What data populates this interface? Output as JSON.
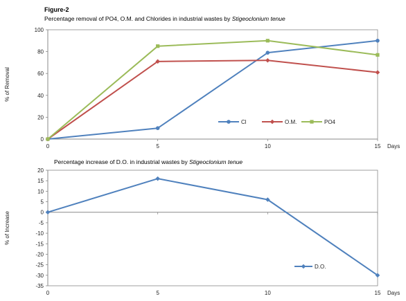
{
  "figure_label": "Figure-2",
  "chart_data": [
    {
      "type": "line",
      "title_plain": "Percentage removal of PO4, O.M. and Chlorides in industrial wastes by ",
      "title_italic": "Stigeoclonium tenue",
      "xlabel": "Days",
      "ylabel": "% of Removal",
      "x": [
        0,
        5,
        10,
        15
      ],
      "xlim": [
        0,
        15
      ],
      "ylim": [
        0,
        100
      ],
      "x_ticks": [
        0,
        5,
        10,
        15
      ],
      "y_ticks": [
        0,
        20,
        40,
        60,
        80,
        100
      ],
      "grid": false,
      "legend_position": "inside-lower-right",
      "series": [
        {
          "name": "Cl",
          "values": [
            0,
            10,
            79,
            90
          ],
          "color": "#4f81bd",
          "marker": "circle"
        },
        {
          "name": "O.M.",
          "values": [
            0,
            71,
            72,
            61
          ],
          "color": "#c0504d",
          "marker": "diamond"
        },
        {
          "name": "PO4",
          "values": [
            0,
            85,
            90,
            77
          ],
          "color": "#9bbb59",
          "marker": "square"
        }
      ]
    },
    {
      "type": "line",
      "title_plain": "Percentage increase of D.O. in industrial wastes by ",
      "title_italic": "Stigeoclonium tenue",
      "xlabel": "Days",
      "ylabel": "% of Increase",
      "x": [
        0,
        5,
        10,
        15
      ],
      "xlim": [
        0,
        15
      ],
      "ylim": [
        -35,
        20
      ],
      "x_ticks": [
        0,
        5,
        10,
        15
      ],
      "y_ticks": [
        20,
        15,
        10,
        5,
        0,
        -5,
        -10,
        -15,
        -20,
        -25,
        -30,
        -35
      ],
      "grid": false,
      "zero_line": true,
      "legend_position": "inside-lower-right",
      "series": [
        {
          "name": "D.O.",
          "values": [
            0,
            16,
            6,
            -30
          ],
          "color": "#4f81bd",
          "marker": "diamond"
        }
      ]
    }
  ]
}
